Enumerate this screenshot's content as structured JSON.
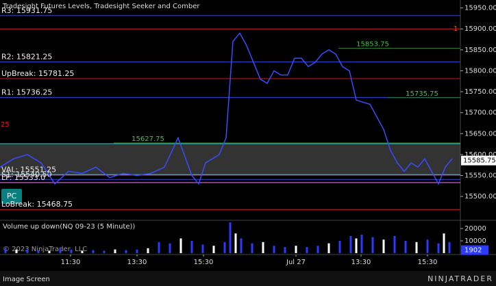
{
  "chart_data": {
    "type": "line",
    "title": "Tradesight Futures Levels, Tradesight Seeker and Comber",
    "series": [
      {
        "name": "NQ 09-23",
        "color": "#3a4cff",
        "x": [
          0,
          5,
          10,
          15,
          20,
          25,
          30,
          35,
          40,
          45,
          50,
          55,
          60,
          65,
          70,
          72.5,
          75,
          80,
          82.5,
          85,
          87.5,
          90,
          92.5,
          95,
          97.5,
          100,
          102.5,
          105,
          107.5,
          110,
          112.5,
          115,
          117.5,
          120,
          122.5,
          125,
          127.5,
          130,
          135,
          140,
          142.5,
          145,
          147.5,
          150,
          152.5,
          155,
          157.5,
          160,
          162.5,
          165
        ],
        "values": [
          15570,
          15590,
          15600,
          15580,
          15530,
          15560,
          15555,
          15570,
          15545,
          15555,
          15550,
          15555,
          15570,
          15640,
          15550,
          15530,
          15580,
          15600,
          15640,
          15870,
          15890,
          15860,
          15820,
          15780,
          15770,
          15800,
          15790,
          15790,
          15830,
          15830,
          15810,
          15820,
          15840,
          15850,
          15840,
          15810,
          15800,
          15730,
          15720,
          15660,
          15610,
          15580,
          15560,
          15580,
          15570,
          15590,
          15560,
          15530,
          15570,
          15590
        ]
      }
    ],
    "xlim": [
      0,
      168
    ],
    "xticks": [
      {
        "value": 25.75,
        "label": "11:30"
      },
      {
        "value": 50,
        "label": "13:30"
      },
      {
        "value": 74.25,
        "label": "15:30"
      },
      {
        "value": 108,
        "label": "Jul 27"
      },
      {
        "value": 131.75,
        "label": "13:30"
      },
      {
        "value": 156,
        "label": "15:30"
      }
    ],
    "ylim": [
      15443,
      15969
    ],
    "yticks": [
      15500,
      15550,
      15600,
      15650,
      15700,
      15750,
      15800,
      15850,
      15900,
      15950
    ],
    "yticks_labels": [
      "15500.00",
      "15550.00",
      "15600.00",
      "15650.00",
      "15700.00",
      "15750.00",
      "15800.00",
      "15850.00",
      "15900.00",
      "15950.00"
    ],
    "last_price": 15585.75,
    "levels": [
      {
        "value": 15931.75,
        "color": "#3040c0",
        "label": "R3: 15931.75"
      },
      {
        "value": 15900,
        "color": "#b01818"
      },
      {
        "value": 15821.25,
        "color": "#3040c0",
        "label": "R2: 15821.25"
      },
      {
        "value": 15781.25,
        "color": "#b01818",
        "label": "UpBreak: 15781.25"
      },
      {
        "value": 15736.25,
        "color": "#3040c0",
        "label": "R1: 15736.25"
      },
      {
        "value": 15551.25,
        "color": "#c060c0",
        "label": "VAL: 15551.25"
      },
      {
        "value": 15540.5,
        "color": "#3040c0",
        "label": "S1: 15540.50"
      },
      {
        "value": 15533,
        "color": "#c060c0",
        "label": "LF: 15533.0"
      },
      {
        "value": 15468.75,
        "color": "#b01818",
        "label": "LoBreak: 15468.75"
      }
    ],
    "band": [
      15552,
      15626
    ],
    "annotations": [
      {
        "x": 136,
        "value": 15853.75,
        "label": "15853.75"
      },
      {
        "x": 154,
        "value": 15735.75,
        "label": "15735.75"
      },
      {
        "x": 54,
        "value": 15627.75,
        "label": "15627.75"
      }
    ],
    "marker_labels": [
      "1",
      "25"
    ],
    "button": "PC",
    "volume": {
      "title": "Volume up down(NQ 09-23 (5 Minute))",
      "color": "#2a3aff",
      "down_color": "#ffffff",
      "x": [
        2,
        6,
        10,
        14,
        18,
        22,
        26,
        30,
        34,
        38,
        42,
        46,
        50,
        54,
        58,
        62,
        66,
        70,
        74,
        78,
        82,
        84,
        86,
        88,
        92,
        96,
        100,
        104,
        108,
        112,
        116,
        120,
        124,
        128,
        130,
        132,
        136,
        140,
        144,
        148,
        152,
        156,
        160,
        162,
        164
      ],
      "values": [
        4000,
        3000,
        3000,
        2500,
        2000,
        4000,
        3000,
        2000,
        2500,
        2000,
        3000,
        2500,
        3000,
        4000,
        9000,
        8000,
        12000,
        10000,
        7000,
        6000,
        9000,
        25000,
        16000,
        12000,
        8000,
        9000,
        6000,
        5000,
        6000,
        5000,
        6000,
        8000,
        10000,
        14000,
        12000,
        15000,
        13000,
        11000,
        14000,
        10000,
        9000,
        11000,
        8000,
        16000,
        9000
      ],
      "ylim": [
        0,
        26667
      ],
      "yticks": [
        10000,
        20000
      ],
      "last": 1902
    },
    "copyright": "© 2023 NinjaTrader, LLC",
    "footer": "Image Screen",
    "logo": "NINJATRADER"
  }
}
